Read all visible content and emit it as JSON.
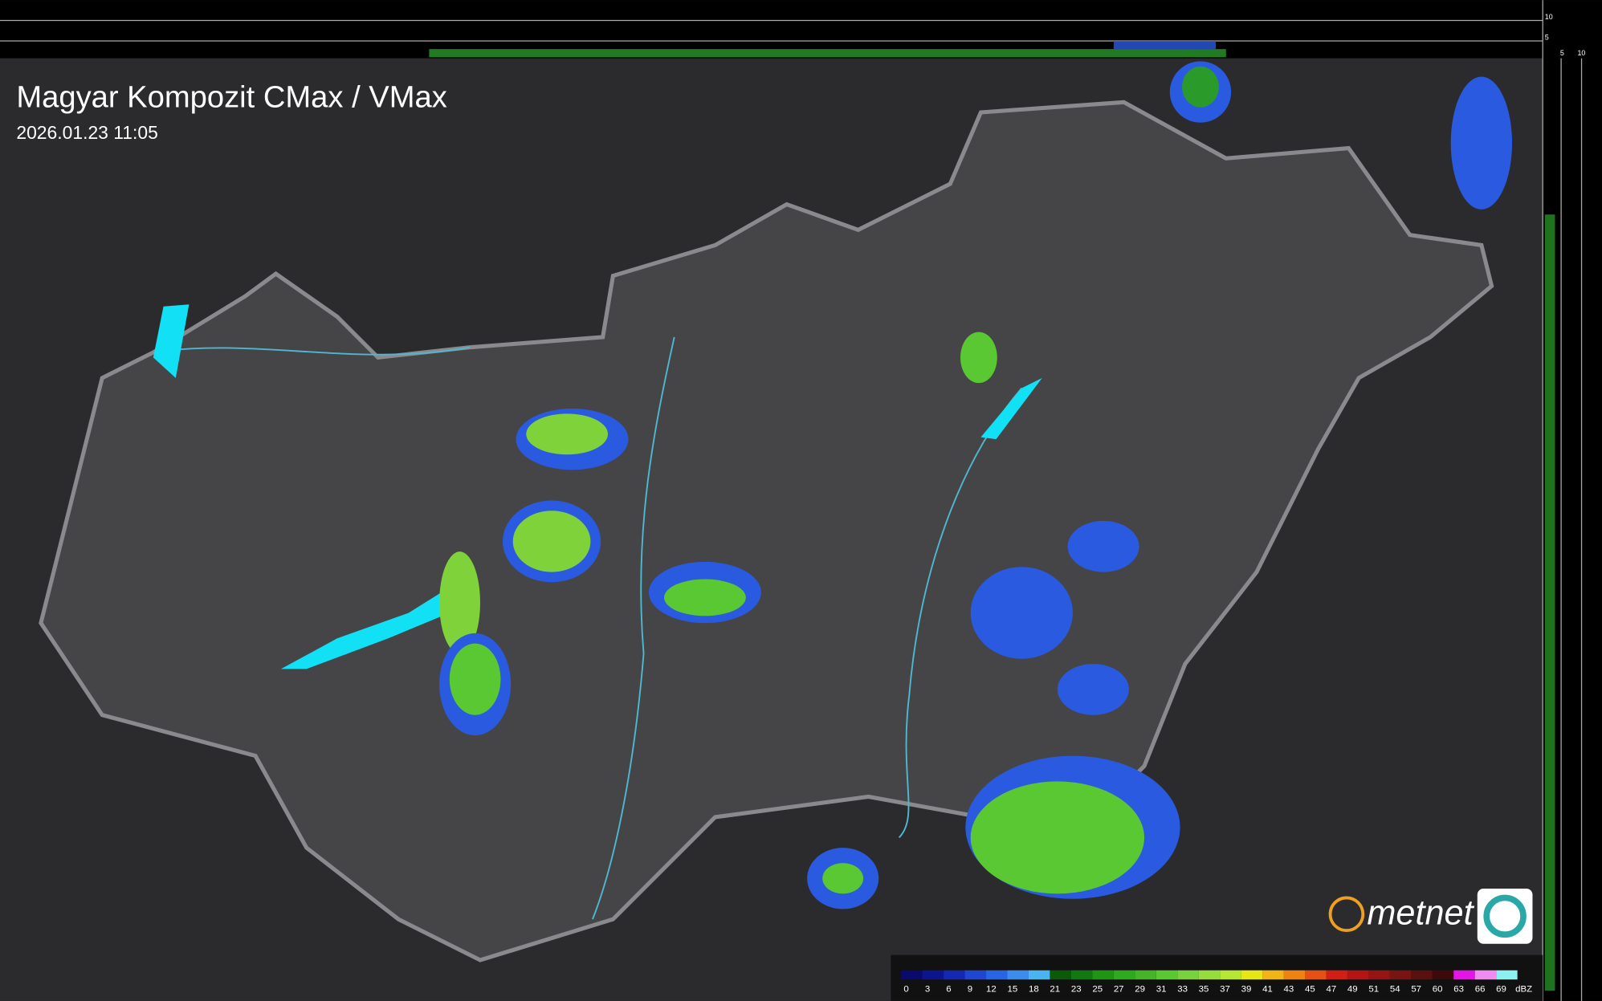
{
  "header": {
    "title": "Magyar Kompozit CMax / VMax",
    "timestamp": "2026.01.23 11:05"
  },
  "profile_axes": {
    "top": [
      "10",
      "5"
    ],
    "side": [
      "5",
      "10"
    ]
  },
  "logo": {
    "text": "metnet"
  },
  "legend": {
    "unit": "dBZ",
    "values": [
      "0",
      "3",
      "6",
      "9",
      "12",
      "15",
      "18",
      "21",
      "23",
      "25",
      "27",
      "29",
      "31",
      "33",
      "35",
      "37",
      "39",
      "41",
      "43",
      "45",
      "47",
      "49",
      "51",
      "54",
      "57",
      "60",
      "63",
      "66",
      "69"
    ],
    "colors": [
      "#0a0a6e",
      "#0c1490",
      "#1428b4",
      "#1e46d2",
      "#2864e6",
      "#3c8cf0",
      "#4ab4f0",
      "#0a5a0a",
      "#127812",
      "#1e9614",
      "#2daa1e",
      "#46b428",
      "#5ac832",
      "#78d23c",
      "#96dc3c",
      "#b4e632",
      "#e6e614",
      "#f0b414",
      "#f08214",
      "#e65014",
      "#d21e14",
      "#b41414",
      "#961414",
      "#781414",
      "#5a1010",
      "#3c0a0a",
      "#e614e6",
      "#f08cf0",
      "#8cf0f0"
    ]
  }
}
